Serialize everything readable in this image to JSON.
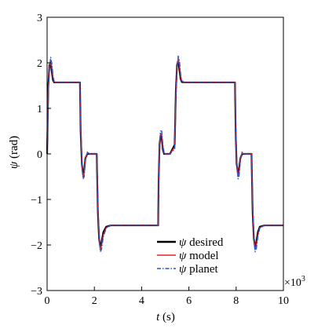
{
  "chart_data": {
    "type": "line",
    "xlabel_symbol": "t",
    "xlabel_unit": "(s)",
    "ylabel_symbol": "ψ",
    "ylabel_unit": "(rad)",
    "x_multiplier": "×10",
    "x_multiplier_exp": "3",
    "xlim": [
      0,
      10
    ],
    "ylim": [
      -3,
      3
    ],
    "xticks": [
      "0",
      "2",
      "4",
      "6",
      "8",
      "10"
    ],
    "yticks": [
      "−3",
      "−2",
      "−1",
      "0",
      "1",
      "2",
      "3"
    ],
    "grid": false,
    "legend_position": "bottom-right",
    "series": [
      {
        "name": "ψ desired",
        "color": "#000000",
        "style": "solid",
        "x": [
          0,
          0.05,
          0.1,
          0.15,
          0.2,
          0.25,
          0.3,
          0.35,
          0.45,
          0.6,
          0.8,
          1.39,
          1.42,
          1.47,
          1.52,
          1.57,
          1.62,
          1.7,
          1.8,
          1.9,
          2.1,
          2.15,
          2.2,
          2.25,
          2.3,
          2.38,
          2.5,
          2.7,
          3.0,
          4.7,
          4.72,
          4.76,
          4.8,
          4.85,
          4.9,
          4.95,
          5.0,
          5.1,
          5.2,
          5.4,
          5.45,
          5.5,
          5.55,
          5.6,
          5.65,
          5.7,
          5.8,
          6.0,
          6.5,
          7.95,
          7.98,
          8.02,
          8.08,
          8.12,
          8.18,
          8.25,
          8.35,
          8.45,
          8.65,
          8.7,
          8.75,
          8.8,
          8.85,
          8.92,
          9.0,
          9.2,
          9.6,
          10.0
        ],
        "y": [
          0,
          1.5,
          1.95,
          2.0,
          1.8,
          1.62,
          1.57,
          1.57,
          1.57,
          1.57,
          1.57,
          1.57,
          0.5,
          -0.2,
          -0.45,
          -0.35,
          -0.1,
          0.0,
          0.0,
          0.0,
          0.0,
          -1.3,
          -1.85,
          -2.05,
          -1.95,
          -1.72,
          -1.6,
          -1.57,
          -1.57,
          -1.57,
          -0.6,
          0.2,
          0.4,
          0.35,
          0.1,
          0.0,
          0.0,
          0.0,
          0.0,
          0.2,
          1.4,
          1.95,
          2.05,
          1.85,
          1.65,
          1.58,
          1.57,
          1.57,
          1.57,
          1.57,
          0.5,
          -0.2,
          -0.45,
          -0.35,
          -0.1,
          0.0,
          0.0,
          0.0,
          0.0,
          -1.3,
          -1.85,
          -2.05,
          -1.95,
          -1.72,
          -1.6,
          -1.57,
          -1.57,
          -1.57
        ]
      },
      {
        "name": "ψ model",
        "color": "#e8202a",
        "style": "solid",
        "x": [
          0,
          0.05,
          0.1,
          0.15,
          0.2,
          0.25,
          0.3,
          0.35,
          0.45,
          0.6,
          0.8,
          1.39,
          1.42,
          1.47,
          1.52,
          1.57,
          1.62,
          1.7,
          1.8,
          1.9,
          2.1,
          2.15,
          2.2,
          2.25,
          2.3,
          2.38,
          2.5,
          2.7,
          3.0,
          4.7,
          4.72,
          4.76,
          4.8,
          4.85,
          4.9,
          4.95,
          5.0,
          5.1,
          5.2,
          5.4,
          5.45,
          5.5,
          5.55,
          5.6,
          5.65,
          5.7,
          5.8,
          6.0,
          6.5,
          7.95,
          7.98,
          8.02,
          8.08,
          8.12,
          8.18,
          8.25,
          8.35,
          8.45,
          8.65,
          8.7,
          8.75,
          8.8,
          8.85,
          8.92,
          9.0,
          9.2,
          9.6,
          10.0
        ],
        "y": [
          0,
          1.4,
          1.9,
          2.05,
          1.9,
          1.68,
          1.58,
          1.57,
          1.57,
          1.57,
          1.57,
          1.57,
          0.6,
          -0.15,
          -0.5,
          -0.42,
          -0.12,
          0.02,
          0.0,
          0.0,
          0.0,
          -1.2,
          -1.8,
          -2.1,
          -2.02,
          -1.78,
          -1.62,
          -1.57,
          -1.57,
          -1.57,
          -0.7,
          0.15,
          0.45,
          0.42,
          0.15,
          0.02,
          0.0,
          0.0,
          0.0,
          0.15,
          1.3,
          1.9,
          2.1,
          1.95,
          1.7,
          1.6,
          1.57,
          1.57,
          1.57,
          1.57,
          0.6,
          -0.15,
          -0.5,
          -0.42,
          -0.12,
          0.02,
          0.0,
          0.0,
          0.0,
          -1.2,
          -1.8,
          -2.1,
          -2.02,
          -1.78,
          -1.62,
          -1.57,
          -1.57,
          -1.57
        ]
      },
      {
        "name": "ψ planet",
        "color": "#2b55c6",
        "style": "dashdot",
        "x": [
          0,
          0.05,
          0.1,
          0.15,
          0.2,
          0.25,
          0.3,
          0.35,
          0.45,
          0.6,
          0.8,
          1.39,
          1.42,
          1.47,
          1.52,
          1.57,
          1.62,
          1.7,
          1.8,
          1.9,
          2.1,
          2.15,
          2.2,
          2.25,
          2.3,
          2.38,
          2.5,
          2.7,
          3.0,
          4.7,
          4.72,
          4.76,
          4.8,
          4.85,
          4.9,
          4.95,
          5.0,
          5.1,
          5.2,
          5.4,
          5.45,
          5.5,
          5.55,
          5.6,
          5.65,
          5.7,
          5.8,
          6.0,
          6.5,
          7.95,
          7.98,
          8.02,
          8.08,
          8.12,
          8.18,
          8.25,
          8.35,
          8.45,
          8.65,
          8.7,
          8.75,
          8.8,
          8.85,
          8.92,
          9.0,
          9.2,
          9.6,
          10.0
        ],
        "y": [
          0,
          1.35,
          1.85,
          2.12,
          1.98,
          1.72,
          1.59,
          1.57,
          1.57,
          1.57,
          1.57,
          1.57,
          0.65,
          -0.1,
          -0.55,
          -0.5,
          -0.15,
          0.04,
          0.0,
          0.0,
          0.0,
          -1.15,
          -1.75,
          -2.15,
          -2.1,
          -1.82,
          -1.63,
          -1.57,
          -1.57,
          -1.57,
          -0.75,
          0.1,
          0.5,
          0.5,
          0.2,
          0.03,
          0.0,
          0.0,
          0.0,
          0.1,
          1.25,
          1.85,
          2.15,
          2.05,
          1.75,
          1.61,
          1.57,
          1.57,
          1.57,
          1.57,
          0.65,
          -0.1,
          -0.55,
          -0.5,
          -0.15,
          0.04,
          0.0,
          0.0,
          0.0,
          -1.15,
          -1.75,
          -2.15,
          -2.1,
          -1.82,
          -1.63,
          -1.57,
          -1.57,
          -1.57
        ]
      }
    ]
  }
}
